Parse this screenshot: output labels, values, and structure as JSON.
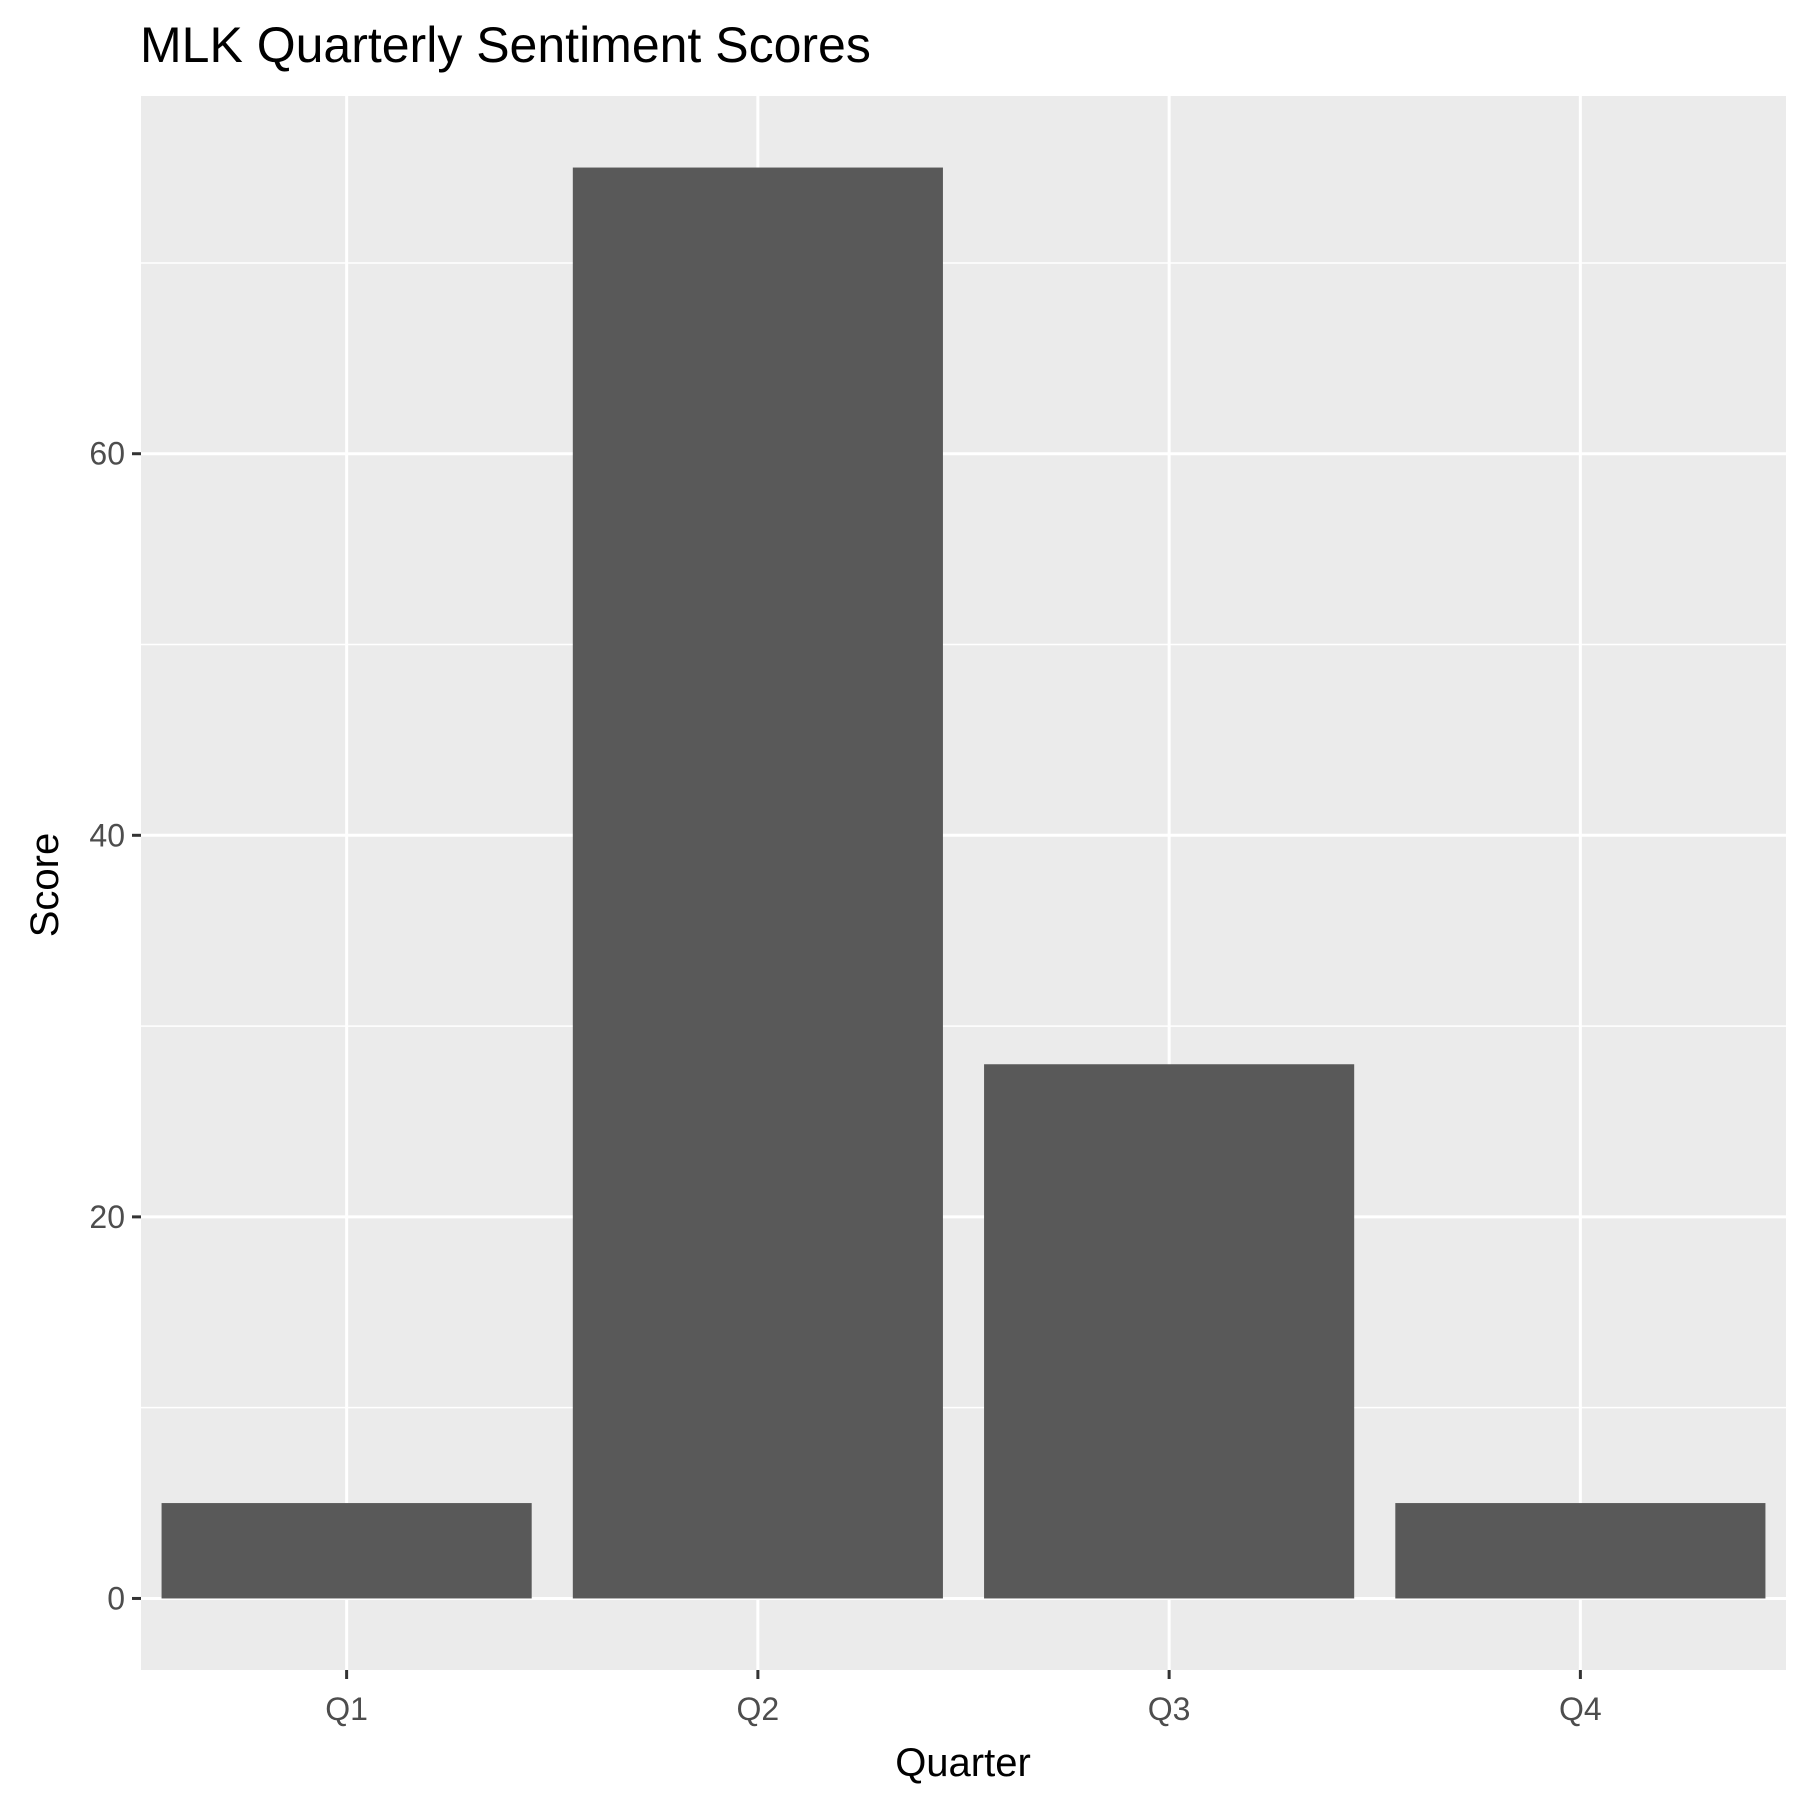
{
  "chart_data": {
    "type": "bar",
    "title": "MLK Quarterly Sentiment Scores",
    "xlabel": "Quarter",
    "ylabel": "Score",
    "categories": [
      "Q1",
      "Q2",
      "Q3",
      "Q4"
    ],
    "values": [
      5,
      75,
      28,
      5
    ],
    "ylim": [
      -3.75,
      78.75
    ],
    "yticks": [
      0,
      20,
      40,
      60
    ],
    "grid": true,
    "legend": "none",
    "colors": {
      "bar": "#595959",
      "panel": "#ebebeb",
      "grid": "#ffffff",
      "tick_label": "#4d4d4d",
      "tick_mark": "#333333"
    }
  }
}
